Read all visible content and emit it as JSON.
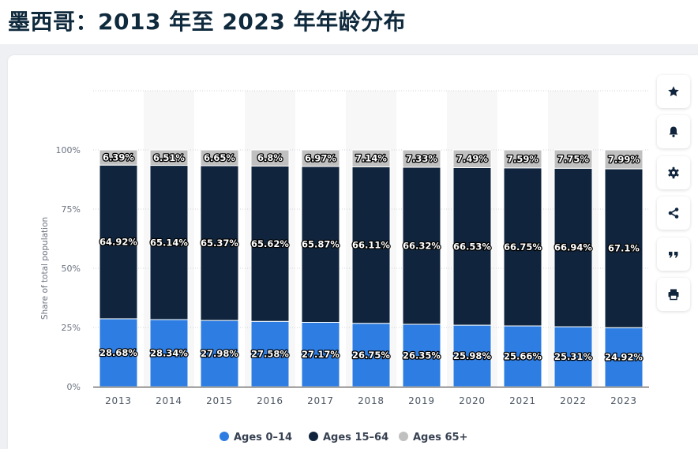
{
  "page": {
    "title": "墨西哥：2013 年至 2023 年年龄分布"
  },
  "toolbar": {
    "buttons": [
      {
        "name": "favorite-button",
        "icon": "star-icon"
      },
      {
        "name": "notification-button",
        "icon": "bell-icon"
      },
      {
        "name": "settings-button",
        "icon": "gear-icon"
      },
      {
        "name": "share-button",
        "icon": "share-icon"
      },
      {
        "name": "cite-button",
        "icon": "quote-icon"
      },
      {
        "name": "print-button",
        "icon": "print-icon"
      }
    ]
  },
  "chart_data": {
    "type": "bar",
    "stacked": true,
    "categories": [
      "2013",
      "2014",
      "2015",
      "2016",
      "2017",
      "2018",
      "2019",
      "2020",
      "2021",
      "2022",
      "2023"
    ],
    "series": [
      {
        "name": "Ages 0-14",
        "color": "#2e7de2",
        "values": [
          28.68,
          28.34,
          27.98,
          27.58,
          27.17,
          26.75,
          26.35,
          25.98,
          25.66,
          25.31,
          24.92
        ],
        "labels": [
          "28.68%",
          "28.34%",
          "27.98%",
          "27.58%",
          "27.17%",
          "26.75%",
          "26.35%",
          "25.98%",
          "25.66%",
          "25.31%",
          "24.92%"
        ]
      },
      {
        "name": "Ages 15-64",
        "color": "#10253d",
        "values": [
          64.92,
          65.14,
          65.37,
          65.62,
          65.87,
          66.11,
          66.32,
          66.53,
          66.75,
          66.94,
          67.1
        ],
        "labels": [
          "64.92%",
          "65.14%",
          "65.37%",
          "65.62%",
          "65.87%",
          "66.11%",
          "66.32%",
          "66.53%",
          "66.75%",
          "66.94%",
          "67.1%"
        ]
      },
      {
        "name": "Ages 65+",
        "color": "#c0c0c0",
        "values": [
          6.39,
          6.51,
          6.65,
          6.8,
          6.97,
          7.14,
          7.33,
          7.49,
          7.59,
          7.75,
          7.99
        ],
        "labels": [
          "6.39%",
          "6.51%",
          "6.65%",
          "6.8%",
          "6.97%",
          "7.14%",
          "7.33%",
          "7.49%",
          "7.59%",
          "7.75%",
          "7.99%"
        ]
      }
    ],
    "legend_labels": [
      "Ages 0–14",
      "Ages 15–64",
      "Ages 65+"
    ],
    "ylabel": "Share of total population",
    "yticks": [
      0,
      25,
      50,
      75,
      100
    ],
    "ytick_labels": [
      "0%",
      "25%",
      "50%",
      "75%",
      "100%"
    ],
    "ylim": [
      0,
      125
    ],
    "grid": true,
    "legend_position": "bottom"
  }
}
